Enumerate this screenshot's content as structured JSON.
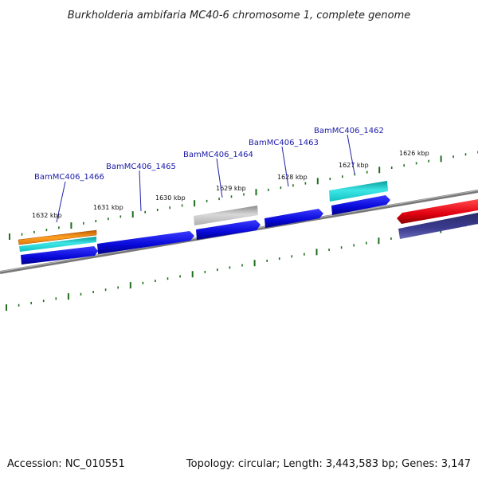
{
  "title": "Burkholderia ambifaria MC40-6 chromosome 1, complete genome",
  "footer": {
    "accession": "Accession: NC_010551",
    "summary": "Topology: circular; Length: 3,443,583 bp; Genes: 3,147"
  },
  "ruler_labels": [
    "1632 kbp",
    "1631 kbp",
    "1630 kbp",
    "1629 kbp",
    "1628 kbp",
    "1627 kbp",
    "1626 kbp"
  ],
  "gene_labels": [
    "BamMC406_1466",
    "BamMC406_1465",
    "BamMC406_1464",
    "BamMC406_1463",
    "BamMC406_1462"
  ],
  "colors": {
    "cds": "#0a0ae0",
    "highlight_red": "#e0101a",
    "slate": "#3a3a8a",
    "teal": "#16c6c6",
    "orange": "#f0820a",
    "grey": "#a8a8a8",
    "tick": "#1e6e1e",
    "backbone": "#8a8a8a"
  }
}
